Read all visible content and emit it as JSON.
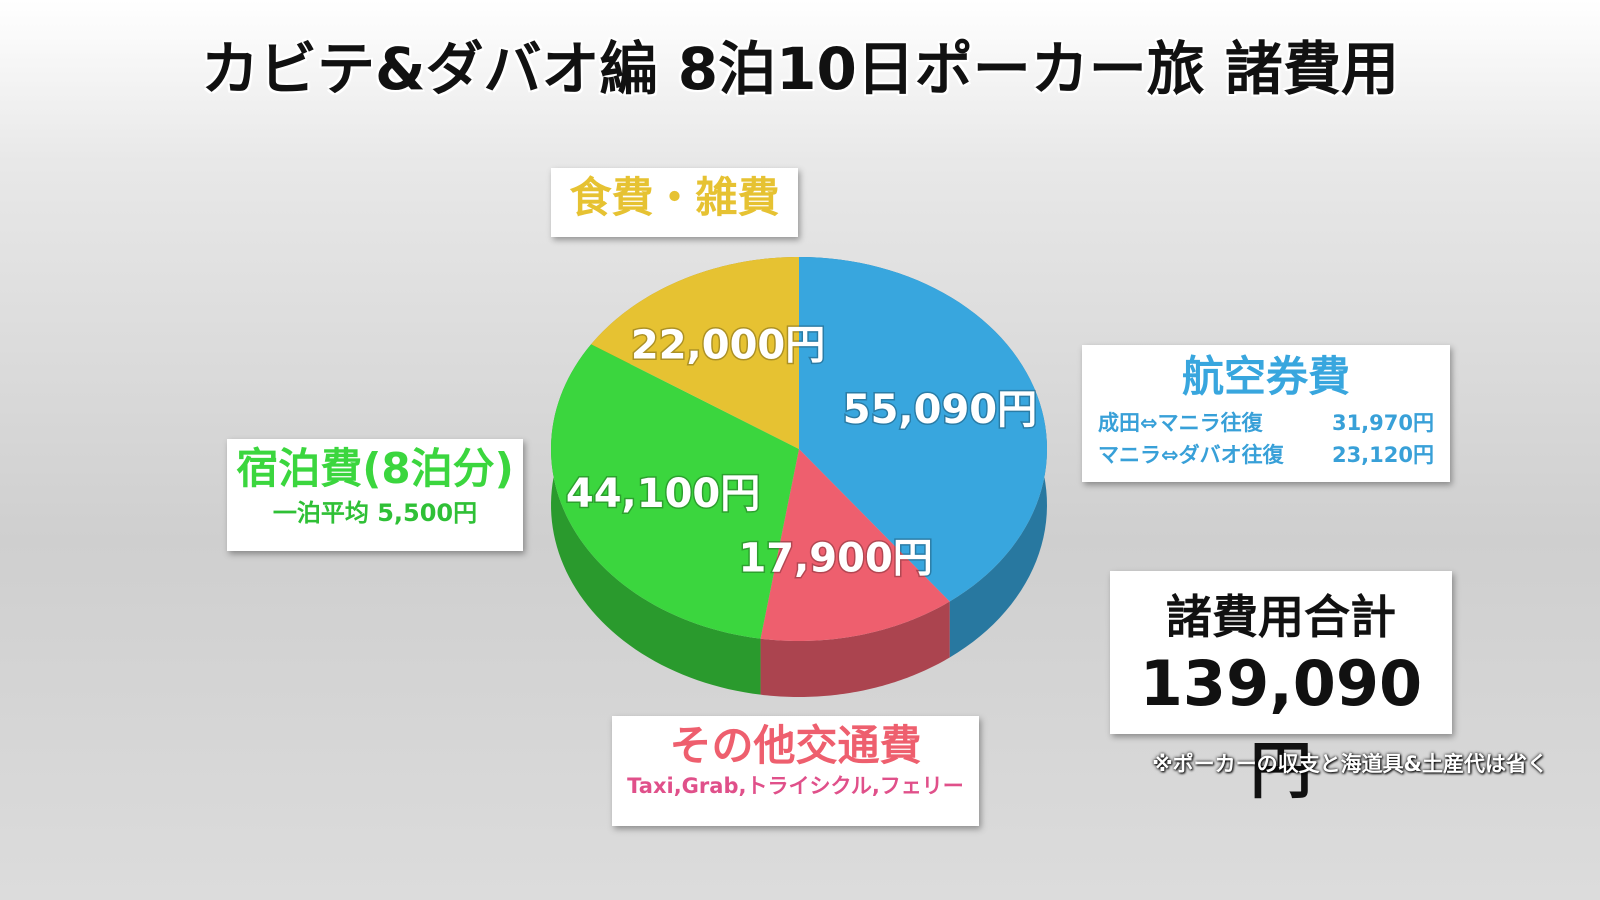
{
  "chart_data": {
    "type": "pie",
    "title": "カビテ&ダバオ編 8泊10日ポーカー旅 諸費用",
    "categories": [
      "航空券費",
      "その他交通費",
      "宿泊費(8泊分)",
      "食費・雑費"
    ],
    "values": [
      55090,
      17900,
      44100,
      22000
    ],
    "value_labels": [
      "55,090円",
      "17,900円",
      "44,100円",
      "22,000円"
    ],
    "colors": [
      "#38a6de",
      "#ee5f6e",
      "#3bd63e",
      "#e6c232"
    ],
    "flight_breakdown": [
      {
        "route": "成田⇔マニラ往復",
        "amount": "31,970円"
      },
      {
        "route": "マニラ⇔ダバオ往復",
        "amount": "23,120円"
      }
    ],
    "lodging_note": "一泊平均 5,500円",
    "transport_note": "Taxi,Grab,トライシクル,フェリー",
    "total_label": "諸費用合計",
    "total": "139,090円",
    "footnote": "※ポーカーの収支と海道具&土産代は省く"
  }
}
